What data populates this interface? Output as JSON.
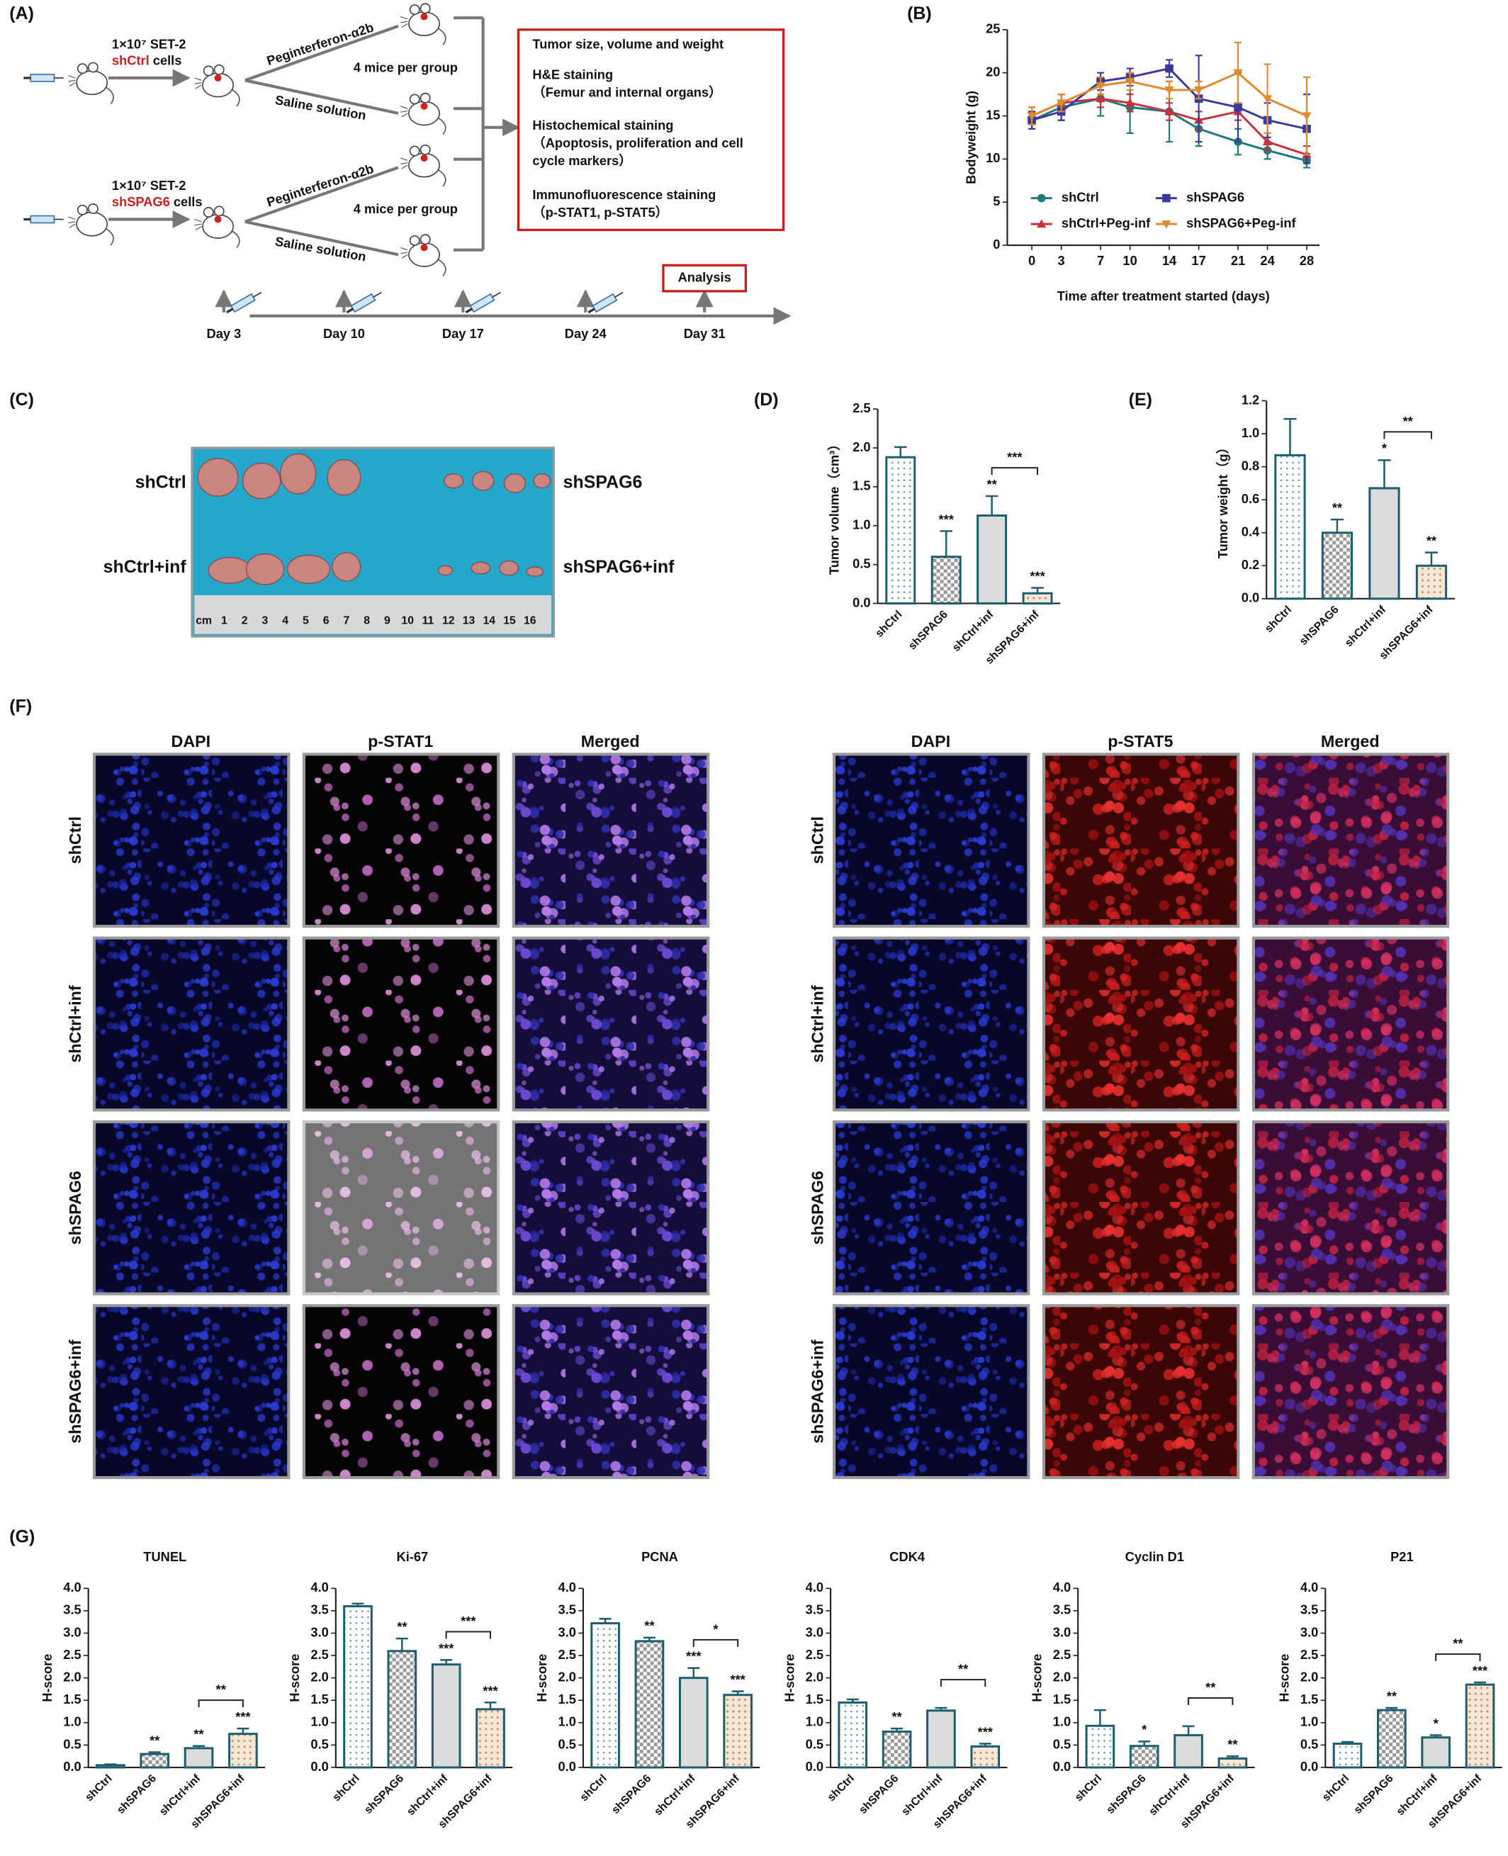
{
  "panel_labels": [
    "(A)",
    "(B)",
    "(C)",
    "(D)",
    "(E)",
    "(F)",
    "(G)"
  ],
  "scheme": {
    "groups": [
      {
        "cells": "1×10⁷ SET-2",
        "line": "shCtrl",
        "suffix": " cells"
      },
      {
        "cells": "1×10⁷ SET-2",
        "line": "shSPAG6",
        "suffix": " cells"
      }
    ],
    "treatments": [
      "Peginterferon-α2b",
      "Saline solution"
    ],
    "mice_per_group": "4 mice per group",
    "readouts": [
      "Tumor size, volume and weight",
      "H&E staining",
      "（Femur and internal organs）",
      "Histochemical staining",
      "（Apoptosis, proliferation and cell",
      "cycle markers）",
      "Immunofluorescence staining",
      "（p-STAT1, p-STAT5）"
    ],
    "timeline": [
      "Day 3",
      "Day 10",
      "Day 17",
      "Day 24",
      "Day 31"
    ],
    "analysis": "Analysis"
  },
  "photo": {
    "labels": [
      "shCtrl",
      "shSPAG6",
      "shCtrl+inf",
      "shSPAG6+inf"
    ],
    "ruler": [
      "cm",
      "1",
      "2",
      "3",
      "4",
      "5",
      "6",
      "7",
      "8",
      "9",
      "10",
      "11",
      "12",
      "13",
      "14",
      "15",
      "16"
    ]
  },
  "if_panels": [
    {
      "columns": [
        "DAPI",
        "p-STAT1",
        "Merged"
      ],
      "rows": [
        "shCtrl",
        "shCtrl+inf",
        "shSPAG6",
        "shSPAG6+inf"
      ]
    },
    {
      "columns": [
        "DAPI",
        "p-STAT5",
        "Merged"
      ],
      "rows": [
        "shCtrl",
        "shCtrl+inf",
        "shSPAG6",
        "shSPAG6+inf"
      ]
    }
  ],
  "chart_data": [
    {
      "type": "line",
      "xlabel": "Time after treatment started (days)",
      "ylabel": "Bodyweight (g)",
      "x": [
        0,
        3,
        7,
        10,
        14,
        17,
        21,
        24,
        28
      ],
      "xlim": [
        -2.5,
        29.3
      ],
      "xticks": [
        0,
        3,
        7,
        10,
        14,
        17,
        21,
        24,
        28
      ],
      "ylim": [
        0,
        25
      ],
      "yticks": [
        0,
        5,
        10,
        15,
        20,
        25
      ],
      "legend": "lower center",
      "series": [
        {
          "name": "shCtrl",
          "color": "#1b7b7b",
          "marker": "circle",
          "values": [
            14.5,
            16,
            17,
            16,
            15.5,
            13.5,
            12,
            11,
            9.8
          ],
          "errors": [
            1,
            1.5,
            2,
            3,
            3.5,
            2,
            1.5,
            1,
            0.8
          ]
        },
        {
          "name": "shCtrl+Peg-inf",
          "color": "#c8303c",
          "marker": "triangle",
          "values": [
            15,
            16.5,
            17,
            16.5,
            15.5,
            14.5,
            15.5,
            12,
            10.5
          ],
          "errors": [
            1,
            1,
            1,
            1,
            1,
            1,
            1,
            1,
            1
          ]
        },
        {
          "name": "shSPAG6",
          "color": "#3a3a9e",
          "marker": "square",
          "values": [
            14.5,
            15.5,
            19,
            19.5,
            20.5,
            17,
            16,
            14.5,
            13.5
          ],
          "errors": [
            1,
            1,
            1,
            1,
            1,
            5,
            4,
            2,
            4
          ]
        },
        {
          "name": "shSPAG6+Peg-inf",
          "color": "#e08a30",
          "marker": "triangle-down",
          "values": [
            15,
            16.5,
            18.5,
            19,
            18,
            18,
            20,
            17,
            15
          ],
          "errors": [
            1,
            1,
            1,
            1,
            1,
            1,
            3.5,
            4,
            4.5
          ]
        }
      ]
    },
    {
      "type": "bar",
      "ylabel": "Tumor volume（cm³）",
      "categories": [
        "shCtrl",
        "shSPAG6",
        "shCtrl+inf",
        "shSPAG6+inf"
      ],
      "values": [
        1.88,
        0.6,
        1.13,
        0.13
      ],
      "errors": [
        0.13,
        0.33,
        0.25,
        0.07
      ],
      "fills": [
        "dots",
        "checks",
        "gray",
        "orange-dots"
      ],
      "edgecolor": "#1d5e6e",
      "ylim": [
        0,
        2.5
      ],
      "yticks": [
        {
          "value": 0,
          "label": "0.0"
        },
        0.5,
        {
          "value": 1,
          "label": "1.0"
        },
        1.5,
        {
          "value": 2,
          "label": "2.0"
        },
        2.5
      ],
      "significance": [
        null,
        "***",
        "**",
        "***"
      ],
      "bracket": {
        "between": [
          2,
          3
        ],
        "label": "***"
      }
    },
    {
      "type": "bar",
      "ylabel": "Tumor weight（g）",
      "categories": [
        "shCtrl",
        "shSPAG6",
        "shCtrl+inf",
        "shSPAG6+inf"
      ],
      "values": [
        0.87,
        0.4,
        0.67,
        0.2
      ],
      "errors": [
        0.22,
        0.08,
        0.17,
        0.08
      ],
      "fills": [
        "dots",
        "checks",
        "gray",
        "orange-dots"
      ],
      "edgecolor": "#1d5e6e",
      "ylim": [
        0,
        1.2
      ],
      "yticks": [
        {
          "value": 0,
          "label": "0.0"
        },
        0.2,
        0.4,
        0.6,
        0.8,
        {
          "value": 1,
          "label": "1.0"
        },
        1.2
      ],
      "significance": [
        null,
        "**",
        "*",
        "**"
      ],
      "bracket": {
        "between": [
          2,
          3
        ],
        "label": "**"
      }
    },
    {
      "type": "bar",
      "title": "TUNEL",
      "ylabel": "H-score",
      "categories": [
        "shCtrl",
        "shSPAG6",
        "shCtrl+inf",
        "shSPAG6+inf"
      ],
      "values": [
        0.05,
        0.3,
        0.43,
        0.75
      ],
      "errors": [
        0.02,
        0.04,
        0.05,
        0.12
      ],
      "fills": [
        "dots",
        "checks",
        "gray",
        "orange-dots"
      ],
      "edgecolor": "#1d5e6e",
      "ylim": [
        0,
        4
      ],
      "yticks": [
        {
          "value": 0,
          "label": "0.0"
        },
        0.5,
        {
          "value": 1,
          "label": "1.0"
        },
        1.5,
        {
          "value": 2,
          "label": "2.0"
        },
        2.5,
        {
          "value": 3,
          "label": "3.0"
        },
        3.5,
        {
          "value": 4,
          "label": "4.0"
        }
      ],
      "significance": [
        null,
        "**",
        "**",
        "***"
      ],
      "bracket": {
        "between": [
          2,
          3
        ],
        "label": "**"
      }
    },
    {
      "type": "bar",
      "title": "Ki-67",
      "ylabel": "H-score",
      "categories": [
        "shCtrl",
        "shSPAG6",
        "shCtrl+inf",
        "shSPAG6+inf"
      ],
      "values": [
        3.6,
        2.6,
        2.3,
        1.3
      ],
      "errors": [
        0.06,
        0.28,
        0.1,
        0.15
      ],
      "fills": [
        "dots",
        "checks",
        "gray",
        "orange-dots"
      ],
      "edgecolor": "#1d5e6e",
      "ylim": [
        0,
        4
      ],
      "yticks": [
        {
          "value": 0,
          "label": "0.0"
        },
        0.5,
        {
          "value": 1,
          "label": "1.0"
        },
        1.5,
        {
          "value": 2,
          "label": "2.0"
        },
        2.5,
        {
          "value": 3,
          "label": "3.0"
        },
        3.5,
        {
          "value": 4,
          "label": "4.0"
        }
      ],
      "significance": [
        null,
        "**",
        "***",
        "***"
      ],
      "bracket": {
        "between": [
          2,
          3
        ],
        "label": "***"
      }
    },
    {
      "type": "bar",
      "title": "PCNA",
      "ylabel": "H-score",
      "categories": [
        "shCtrl",
        "shSPAG6",
        "shCtrl+inf",
        "shSPAG6+inf"
      ],
      "values": [
        3.22,
        2.82,
        2.0,
        1.62
      ],
      "errors": [
        0.1,
        0.08,
        0.22,
        0.08
      ],
      "fills": [
        "dots",
        "checks",
        "gray",
        "orange-dots"
      ],
      "edgecolor": "#1d5e6e",
      "ylim": [
        0,
        4
      ],
      "yticks": [
        {
          "value": 0,
          "label": "0.0"
        },
        0.5,
        {
          "value": 1,
          "label": "1.0"
        },
        1.5,
        {
          "value": 2,
          "label": "2.0"
        },
        2.5,
        {
          "value": 3,
          "label": "3.0"
        },
        3.5,
        {
          "value": 4,
          "label": "4.0"
        }
      ],
      "significance": [
        null,
        "**",
        "***",
        "***"
      ],
      "bracket": {
        "between": [
          2,
          3
        ],
        "label": "*"
      }
    },
    {
      "type": "bar",
      "title": "CDK4",
      "ylabel": "H-score",
      "categories": [
        "shCtrl",
        "shSPAG6",
        "shCtrl+inf",
        "shSPAG6+inf"
      ],
      "values": [
        1.45,
        0.8,
        1.27,
        0.47
      ],
      "errors": [
        0.07,
        0.07,
        0.06,
        0.06
      ],
      "fills": [
        "dots",
        "checks",
        "gray",
        "orange-dots"
      ],
      "edgecolor": "#1d5e6e",
      "ylim": [
        0,
        4
      ],
      "yticks": [
        {
          "value": 0,
          "label": "0.0"
        },
        0.5,
        {
          "value": 1,
          "label": "1.0"
        },
        1.5,
        {
          "value": 2,
          "label": "2.0"
        },
        2.5,
        {
          "value": 3,
          "label": "3.0"
        },
        3.5,
        {
          "value": 4,
          "label": "4.0"
        }
      ],
      "significance": [
        null,
        "**",
        null,
        "***"
      ],
      "bracket": {
        "between": [
          2,
          3
        ],
        "label": "**"
      }
    },
    {
      "type": "bar",
      "title": "Cyclin D1",
      "ylabel": "H-score",
      "categories": [
        "shCtrl",
        "shSPAG6",
        "shCtrl+inf",
        "shSPAG6+inf"
      ],
      "values": [
        0.93,
        0.48,
        0.72,
        0.2
      ],
      "errors": [
        0.35,
        0.1,
        0.2,
        0.05
      ],
      "fills": [
        "dots",
        "checks",
        "gray",
        "orange-dots"
      ],
      "edgecolor": "#1d5e6e",
      "ylim": [
        0,
        4
      ],
      "yticks": [
        {
          "value": 0,
          "label": "0.0"
        },
        0.5,
        {
          "value": 1,
          "label": "1.0"
        },
        1.5,
        {
          "value": 2,
          "label": "2.0"
        },
        2.5,
        {
          "value": 3,
          "label": "3.0"
        },
        3.5,
        {
          "value": 4,
          "label": "4.0"
        }
      ],
      "significance": [
        null,
        "*",
        null,
        "**"
      ],
      "bracket": {
        "between": [
          2,
          3
        ],
        "label": "**"
      }
    },
    {
      "type": "bar",
      "title": "P21",
      "ylabel": "H-score",
      "categories": [
        "shCtrl",
        "shSPAG6",
        "shCtrl+inf",
        "shSPAG6+inf"
      ],
      "values": [
        0.53,
        1.28,
        0.67,
        1.85
      ],
      "errors": [
        0.04,
        0.05,
        0.05,
        0.05
      ],
      "fills": [
        "dots",
        "checks",
        "gray",
        "orange-dots"
      ],
      "edgecolor": "#1d5e6e",
      "ylim": [
        0,
        4
      ],
      "yticks": [
        {
          "value": 0,
          "label": "0.0"
        },
        0.5,
        {
          "value": 1,
          "label": "1.0"
        },
        1.5,
        {
          "value": 2,
          "label": "2.0"
        },
        2.5,
        {
          "value": 3,
          "label": "3.0"
        },
        3.5,
        {
          "value": 4,
          "label": "4.0"
        }
      ],
      "significance": [
        null,
        "**",
        "*",
        "***"
      ],
      "bracket": {
        "between": [
          2,
          3
        ],
        "label": "**"
      }
    }
  ]
}
